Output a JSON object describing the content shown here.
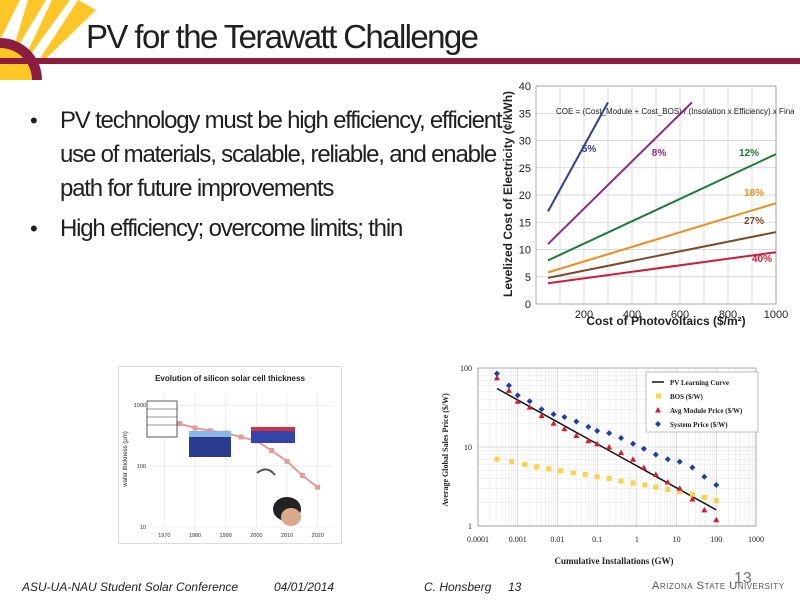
{
  "slide": {
    "title": "PV for the Terawatt Challenge",
    "bullets": [
      "PV technology must be high efficiency, efficient use of materials, scalable, reliable, and enable path for future improvements",
      "High efficiency; overcome limits; thin"
    ]
  },
  "footer": {
    "conference": "ASU-UA-NAU Student Solar Conference",
    "date": "04/01/2014",
    "author": "C. Honsberg",
    "slide_no": "13",
    "page_number": "13",
    "logo_text": "Arizona State University"
  },
  "colors": {
    "accent": "#8c1d40",
    "gold": "#ffc627"
  },
  "chart_data": [
    {
      "type": "line",
      "title": "",
      "xlabel": "Cost of Photovoltaics ($/m²)",
      "ylabel": "Levelized Cost of Electricity (¢/kWh)",
      "xlim": [
        0,
        1000
      ],
      "ylim": [
        0,
        40
      ],
      "xticks": [
        "200",
        "400",
        "600",
        "800",
        "1000"
      ],
      "yticks": [
        "0",
        "5",
        "10",
        "15",
        "20",
        "25",
        "30",
        "35",
        "40"
      ],
      "grid": true,
      "formula": "COE = (Cost_Module + Cost_BOS) / (Insolation x Efficiency) x Finance",
      "series": [
        {
          "name": "5%",
          "color": "#2e3f8f",
          "x": [
            50,
            300
          ],
          "y": [
            17,
            37
          ]
        },
        {
          "name": "8%",
          "color": "#8e2a8e",
          "x": [
            50,
            650
          ],
          "y": [
            11,
            37
          ]
        },
        {
          "name": "12%",
          "color": "#1e7a3c",
          "x": [
            50,
            1000
          ],
          "y": [
            8,
            27.5
          ]
        },
        {
          "name": "18%",
          "color": "#f08b1c",
          "x": [
            50,
            1000
          ],
          "y": [
            5.8,
            18.5
          ]
        },
        {
          "name": "27%",
          "color": "#7a4a2a",
          "x": [
            50,
            1000
          ],
          "y": [
            4.8,
            13.2
          ]
        },
        {
          "name": "40%",
          "color": "#c8203a",
          "x": [
            50,
            1000
          ],
          "y": [
            3.8,
            9.5
          ]
        }
      ]
    },
    {
      "type": "line",
      "title": "Evolution of silicon solar cell thickness",
      "xlabel": "",
      "ylabel": "wafer thickness (μm)",
      "xticks": [
        "1970",
        "1980",
        "1990",
        "2000",
        "2010",
        "2020"
      ],
      "yticks": [
        "10",
        "100",
        "1000"
      ],
      "ylog": true,
      "x": [
        1970,
        1975,
        1980,
        1985,
        1990,
        1995,
        2000,
        2005,
        2010,
        2015,
        2020
      ],
      "y": [
        600,
        500,
        420,
        380,
        350,
        300,
        260,
        180,
        120,
        70,
        45
      ],
      "color": "#e59a9a"
    },
    {
      "type": "scatter",
      "title": "",
      "xlabel": "Cumulative Installations (GW)",
      "ylabel": "Average Global Sales Price ($/W)",
      "xlog": true,
      "ylog": true,
      "xticks": [
        "0.0001",
        "0.001",
        "0.01",
        "0.1",
        "1",
        "10",
        "100",
        "1000"
      ],
      "yticks": [
        "1",
        "10",
        "100"
      ],
      "legend_position": "top-right",
      "series": [
        {
          "name": "PV Learning Curve",
          "kind": "line",
          "color": "#111111",
          "x": [
            0.0003,
            100
          ],
          "y": [
            55,
            1.6
          ]
        },
        {
          "name": "BOS ($/W)",
          "kind": "square",
          "color": "#f7d24a",
          "x": [
            0.0003,
            0.0007,
            0.0015,
            0.003,
            0.006,
            0.012,
            0.025,
            0.05,
            0.1,
            0.2,
            0.4,
            0.8,
            1.6,
            3,
            6,
            12,
            25,
            50,
            100
          ],
          "y": [
            7.0,
            6.5,
            6.0,
            5.6,
            5.3,
            5.0,
            4.7,
            4.5,
            4.2,
            4.0,
            3.7,
            3.5,
            3.3,
            3.1,
            2.9,
            2.7,
            2.5,
            2.3,
            2.1
          ]
        },
        {
          "name": "Avg Module Price ($/W)",
          "kind": "triangle",
          "color": "#d7192c",
          "x": [
            0.0003,
            0.0006,
            0.001,
            0.002,
            0.004,
            0.008,
            0.015,
            0.03,
            0.06,
            0.1,
            0.2,
            0.4,
            0.8,
            1.5,
            3,
            6,
            12,
            25,
            50,
            100
          ],
          "y": [
            75,
            52,
            38,
            32,
            25,
            20,
            17,
            14,
            12,
            11,
            10,
            8.5,
            7,
            5.5,
            4.5,
            3.6,
            3.0,
            2.2,
            1.6,
            1.2
          ]
        },
        {
          "name": "System Price ($/W)",
          "kind": "diamond",
          "color": "#1b3fa8",
          "x": [
            0.0003,
            0.0006,
            0.001,
            0.002,
            0.004,
            0.008,
            0.015,
            0.03,
            0.06,
            0.1,
            0.2,
            0.4,
            0.8,
            1.5,
            3,
            6,
            12,
            25,
            50,
            100
          ],
          "y": [
            85,
            60,
            45,
            38,
            30,
            26,
            24,
            21,
            18,
            16,
            15,
            13,
            11,
            9.5,
            8,
            7,
            6.5,
            5.5,
            4.2,
            3.3
          ]
        }
      ]
    }
  ]
}
